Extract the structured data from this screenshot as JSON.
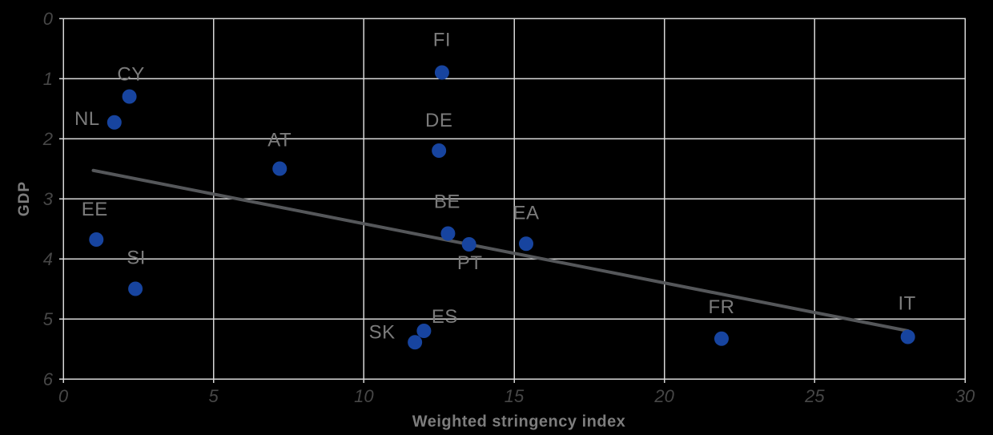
{
  "chart_data": {
    "type": "scatter",
    "title": "",
    "xlabel": "Weighted stringency index",
    "ylabel": "GDP",
    "xlim": [
      0,
      30
    ],
    "ylim": [
      -6,
      0
    ],
    "x_ticks": [
      0,
      5,
      10,
      15,
      20,
      25,
      30
    ],
    "x_tick_labels": [
      "0",
      "5",
      "10",
      "15",
      "20",
      "25",
      "30"
    ],
    "y_ticks": [
      0,
      -1,
      -2,
      -3,
      -4,
      -5,
      -6
    ],
    "y_tick_labels": [
      "0",
      "1",
      "2",
      "3",
      "4",
      "5",
      "6"
    ],
    "grid": true,
    "legend": "none",
    "points": [
      {
        "label": "FI",
        "x": 12.6,
        "y": -0.9,
        "label_offset": [
          0,
          -41
        ]
      },
      {
        "label": "CY",
        "x": 2.2,
        "y": -1.3,
        "label_offset": [
          2,
          -28
        ]
      },
      {
        "label": "NL",
        "x": 1.7,
        "y": -1.73,
        "label_offset": [
          -34,
          -5
        ]
      },
      {
        "label": "DE",
        "x": 12.5,
        "y": -2.2,
        "label_offset": [
          0,
          -38
        ]
      },
      {
        "label": "AT",
        "x": 7.2,
        "y": -2.5,
        "label_offset": [
          0,
          -36
        ]
      },
      {
        "label": "EE",
        "x": 1.1,
        "y": -3.68,
        "label_offset": [
          -2,
          -38
        ]
      },
      {
        "label": "BE",
        "x": 12.8,
        "y": -3.58,
        "label_offset": [
          -1,
          -40
        ]
      },
      {
        "label": "PT",
        "x": 13.5,
        "y": -3.76,
        "label_offset": [
          1,
          23
        ]
      },
      {
        "label": "EA",
        "x": 15.4,
        "y": -3.75,
        "label_offset": [
          0,
          -39
        ]
      },
      {
        "label": "SI",
        "x": 2.4,
        "y": -4.5,
        "label_offset": [
          1,
          -39
        ]
      },
      {
        "label": "SK",
        "x": 11.7,
        "y": -5.39,
        "label_offset": [
          -41,
          -13
        ]
      },
      {
        "label": "ES",
        "x": 12.0,
        "y": -5.2,
        "label_offset": [
          26,
          -18
        ]
      },
      {
        "label": "FR",
        "x": 21.9,
        "y": -5.33,
        "label_offset": [
          0,
          -40
        ]
      },
      {
        "label": "IT",
        "x": 28.1,
        "y": -5.3,
        "label_offset": [
          -1,
          -42
        ]
      }
    ],
    "trend_line": {
      "x1": 1.0,
      "y1": -2.53,
      "x2": 28.1,
      "y2": -5.2
    },
    "colors": {
      "point": "#17449f",
      "trend": "#55575a",
      "grid": "#d6d6d6",
      "point_label": "#7b7b7b",
      "tick_label": "#474747",
      "axis_title": "#7d7d7d",
      "background": "#000000"
    }
  }
}
